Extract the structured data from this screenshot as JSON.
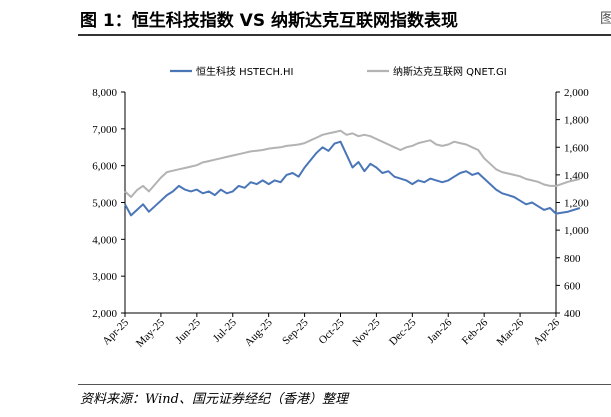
{
  "title": "图 1：恒生科技指数 VS 纳斯达克互联网指数表现",
  "corner_mark": "图",
  "source": "资料来源：Wind、国元证券经纪（香港）整理",
  "chart_data": {
    "type": "line",
    "title": "",
    "x_ticks": [
      "Apr-25",
      "May-25",
      "Jun-25",
      "Jul-25",
      "Aug-25",
      "Sep-25",
      "Oct-25",
      "Nov-25",
      "Dec-25",
      "Jan-26",
      "Feb-26",
      "Mar-26",
      "Apr-26"
    ],
    "y_left": {
      "min": 2000,
      "max": 8000,
      "ticks": [
        "2,000",
        "3,000",
        "4,000",
        "5,000",
        "6,000",
        "7,000",
        "8,000"
      ]
    },
    "y_right": {
      "min": 400,
      "max": 2000,
      "ticks": [
        "400",
        "600",
        "800",
        "1,000",
        "1,200",
        "1,400",
        "1,600",
        "1,800",
        "2,000"
      ]
    },
    "legend_position": "top",
    "series": [
      {
        "name": "恒生科技 HSTECH.HI",
        "axis": "left",
        "color": "#4a76b8",
        "points": [
          [
            "Apr-25",
            4950
          ],
          [
            "Apr-25",
            4650
          ],
          [
            "Apr-25",
            4800
          ],
          [
            "Apr-25",
            4950
          ],
          [
            "Apr-25",
            4750
          ],
          [
            "Apr-25",
            4900
          ],
          [
            "May-25",
            5050
          ],
          [
            "May-25",
            5200
          ],
          [
            "May-25",
            5300
          ],
          [
            "May-25",
            5450
          ],
          [
            "May-25",
            5350
          ],
          [
            "May-25",
            5300
          ],
          [
            "Jun-25",
            5350
          ],
          [
            "Jun-25",
            5250
          ],
          [
            "Jun-25",
            5300
          ],
          [
            "Jun-25",
            5200
          ],
          [
            "Jun-25",
            5350
          ],
          [
            "Jun-25",
            5250
          ],
          [
            "Jul-25",
            5300
          ],
          [
            "Jul-25",
            5450
          ],
          [
            "Jul-25",
            5400
          ],
          [
            "Jul-25",
            5550
          ],
          [
            "Jul-25",
            5500
          ],
          [
            "Jul-25",
            5600
          ],
          [
            "Aug-25",
            5500
          ],
          [
            "Aug-25",
            5600
          ],
          [
            "Aug-25",
            5550
          ],
          [
            "Aug-25",
            5750
          ],
          [
            "Aug-25",
            5800
          ],
          [
            "Aug-25",
            5700
          ],
          [
            "Sep-25",
            5950
          ],
          [
            "Sep-25",
            6150
          ],
          [
            "Sep-25",
            6350
          ],
          [
            "Sep-25",
            6500
          ],
          [
            "Sep-25",
            6400
          ],
          [
            "Sep-25",
            6600
          ],
          [
            "Oct-25",
            6650
          ],
          [
            "Oct-25",
            6300
          ],
          [
            "Oct-25",
            5950
          ],
          [
            "Oct-25",
            6100
          ],
          [
            "Oct-25",
            5850
          ],
          [
            "Oct-25",
            6050
          ],
          [
            "Nov-25",
            5950
          ],
          [
            "Nov-25",
            5800
          ],
          [
            "Nov-25",
            5850
          ],
          [
            "Nov-25",
            5700
          ],
          [
            "Nov-25",
            5650
          ],
          [
            "Nov-25",
            5600
          ],
          [
            "Dec-25",
            5500
          ],
          [
            "Dec-25",
            5600
          ],
          [
            "Dec-25",
            5550
          ],
          [
            "Dec-25",
            5650
          ],
          [
            "Dec-25",
            5600
          ],
          [
            "Dec-25",
            5550
          ],
          [
            "Jan-26",
            5600
          ],
          [
            "Jan-26",
            5700
          ],
          [
            "Jan-26",
            5800
          ],
          [
            "Jan-26",
            5850
          ],
          [
            "Jan-26",
            5750
          ],
          [
            "Jan-26",
            5800
          ],
          [
            "Feb-26",
            5650
          ],
          [
            "Feb-26",
            5500
          ],
          [
            "Feb-26",
            5350
          ],
          [
            "Feb-26",
            5250
          ],
          [
            "Feb-26",
            5200
          ],
          [
            "Feb-26",
            5150
          ],
          [
            "Mar-26",
            5050
          ],
          [
            "Mar-26",
            4950
          ],
          [
            "Mar-26",
            5000
          ],
          [
            "Mar-26",
            4900
          ],
          [
            "Mar-26",
            4800
          ],
          [
            "Mar-26",
            4850
          ],
          [
            "Apr-26",
            4700
          ],
          [
            "Apr-26",
            4750
          ],
          [
            "Apr-26",
            4850
          ]
        ]
      },
      {
        "name": "纳斯达克互联网 QNET.GI",
        "axis": "right",
        "color": "#b3b3b3",
        "points": [
          [
            "Apr-25",
            1280
          ],
          [
            "Apr-25",
            1240
          ],
          [
            "Apr-25",
            1290
          ],
          [
            "Apr-25",
            1320
          ],
          [
            "Apr-25",
            1280
          ],
          [
            "Apr-25",
            1330
          ],
          [
            "May-25",
            1380
          ],
          [
            "May-25",
            1420
          ],
          [
            "May-25",
            1430
          ],
          [
            "May-25",
            1440
          ],
          [
            "May-25",
            1450
          ],
          [
            "May-25",
            1460
          ],
          [
            "Jun-25",
            1470
          ],
          [
            "Jun-25",
            1490
          ],
          [
            "Jun-25",
            1500
          ],
          [
            "Jun-25",
            1510
          ],
          [
            "Jun-25",
            1520
          ],
          [
            "Jun-25",
            1530
          ],
          [
            "Jul-25",
            1540
          ],
          [
            "Jul-25",
            1550
          ],
          [
            "Jul-25",
            1560
          ],
          [
            "Jul-25",
            1570
          ],
          [
            "Jul-25",
            1575
          ],
          [
            "Jul-25",
            1580
          ],
          [
            "Aug-25",
            1590
          ],
          [
            "Aug-25",
            1595
          ],
          [
            "Aug-25",
            1600
          ],
          [
            "Aug-25",
            1610
          ],
          [
            "Aug-25",
            1615
          ],
          [
            "Aug-25",
            1620
          ],
          [
            "Sep-25",
            1630
          ],
          [
            "Sep-25",
            1650
          ],
          [
            "Sep-25",
            1670
          ],
          [
            "Sep-25",
            1690
          ],
          [
            "Sep-25",
            1700
          ],
          [
            "Sep-25",
            1710
          ],
          [
            "Oct-25",
            1720
          ],
          [
            "Oct-25",
            1690
          ],
          [
            "Oct-25",
            1700
          ],
          [
            "Oct-25",
            1680
          ],
          [
            "Oct-25",
            1690
          ],
          [
            "Oct-25",
            1680
          ],
          [
            "Nov-25",
            1660
          ],
          [
            "Nov-25",
            1640
          ],
          [
            "Nov-25",
            1620
          ],
          [
            "Nov-25",
            1600
          ],
          [
            "Nov-25",
            1580
          ],
          [
            "Nov-25",
            1600
          ],
          [
            "Dec-25",
            1610
          ],
          [
            "Dec-25",
            1630
          ],
          [
            "Dec-25",
            1640
          ],
          [
            "Dec-25",
            1650
          ],
          [
            "Dec-25",
            1620
          ],
          [
            "Dec-25",
            1610
          ],
          [
            "Jan-26",
            1620
          ],
          [
            "Jan-26",
            1640
          ],
          [
            "Jan-26",
            1630
          ],
          [
            "Jan-26",
            1620
          ],
          [
            "Jan-26",
            1600
          ],
          [
            "Jan-26",
            1580
          ],
          [
            "Feb-26",
            1520
          ],
          [
            "Feb-26",
            1480
          ],
          [
            "Feb-26",
            1440
          ],
          [
            "Feb-26",
            1420
          ],
          [
            "Feb-26",
            1410
          ],
          [
            "Feb-26",
            1400
          ],
          [
            "Mar-26",
            1390
          ],
          [
            "Mar-26",
            1370
          ],
          [
            "Mar-26",
            1360
          ],
          [
            "Mar-26",
            1350
          ],
          [
            "Mar-26",
            1330
          ],
          [
            "Mar-26",
            1320
          ],
          [
            "Apr-26",
            1320
          ],
          [
            "Apr-26",
            1350
          ],
          [
            "Apr-26",
            1370
          ]
        ]
      }
    ]
  }
}
